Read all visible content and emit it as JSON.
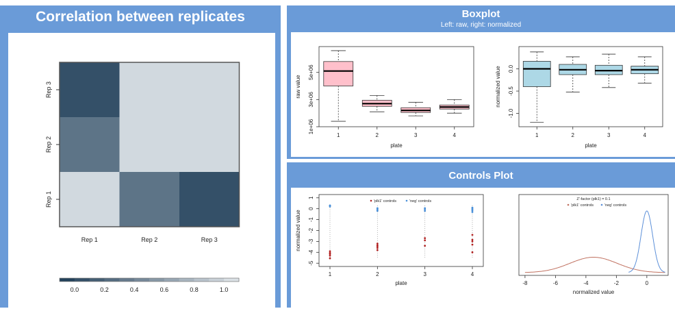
{
  "panels": {
    "correlation": {
      "title": "Correlation between replicates"
    },
    "boxplot": {
      "title": "Boxplot",
      "subtitle": "Left: raw, right: normalized"
    },
    "controls": {
      "title": "Controls Plot"
    }
  },
  "colors": {
    "panel_blue": "#6a9bd8",
    "box_pink": "#ffc0cb",
    "box_blue": "#add8e6",
    "plk1_red": "#b22222",
    "neg_blue": "#4a90d9",
    "density_red": "#c0705f",
    "density_blue": "#5b8fd8"
  },
  "chart_data": [
    {
      "type": "heatmap",
      "x_categories": [
        "Rep 1",
        "Rep 2",
        "Rep 3"
      ],
      "y_categories": [
        "Rep 1",
        "Rep 2",
        "Rep 3"
      ],
      "values": [
        [
          1.0,
          0.3,
          0.05
        ],
        [
          0.3,
          1.0,
          1.0
        ],
        [
          0.05,
          1.0,
          1.0
        ]
      ],
      "colorbar": {
        "ticks": [
          "0.0",
          "0.2",
          "0.4",
          "0.6",
          "0.8",
          "1.0"
        ],
        "range": [
          -0.1,
          1.1
        ]
      }
    },
    {
      "type": "boxplot",
      "xlabel": "plate",
      "ylabel": "raw value",
      "categories": [
        "1",
        "2",
        "3",
        "4"
      ],
      "ylim": [
        1000000,
        6900000
      ],
      "yticks": [
        {
          "value": 1000000,
          "label": "1e+06"
        },
        {
          "value": 3000000,
          "label": "3e+06"
        },
        {
          "value": 5000000,
          "label": "5e+06"
        }
      ],
      "boxes": [
        {
          "min": 1400000,
          "q1": 4000000,
          "median": 5100000,
          "q3": 5800000,
          "max": 6600000
        },
        {
          "min": 2100000,
          "q1": 2500000,
          "median": 2700000,
          "q3": 2950000,
          "max": 3300000
        },
        {
          "min": 1800000,
          "q1": 2050000,
          "median": 2200000,
          "q3": 2400000,
          "max": 2800000
        },
        {
          "min": 2000000,
          "q1": 2300000,
          "median": 2450000,
          "q3": 2600000,
          "max": 3000000
        }
      ]
    },
    {
      "type": "boxplot",
      "xlabel": "plate",
      "ylabel": "normalized value",
      "categories": [
        "1",
        "2",
        "3",
        "4"
      ],
      "ylim": [
        -1.3,
        0.5
      ],
      "yticks": [
        {
          "value": 0.0,
          "label": "0.0"
        },
        {
          "value": -0.5,
          "label": "-0.5"
        },
        {
          "value": -1.0,
          "label": "-1.0"
        }
      ],
      "boxes": [
        {
          "min": -1.2,
          "q1": -0.4,
          "median": 0.0,
          "q3": 0.17,
          "max": 0.38
        },
        {
          "min": -0.52,
          "q1": -0.13,
          "median": -0.02,
          "q3": 0.1,
          "max": 0.27
        },
        {
          "min": -0.42,
          "q1": -0.13,
          "median": -0.04,
          "q3": 0.08,
          "max": 0.33
        },
        {
          "min": -0.32,
          "q1": -0.11,
          "median": -0.02,
          "q3": 0.06,
          "max": 0.27
        }
      ]
    },
    {
      "type": "scatter",
      "xlabel": "plate",
      "ylabel": "normalized value",
      "x_ticks": [
        "1",
        "2",
        "3",
        "4"
      ],
      "ylim": [
        -5.3,
        1.3
      ],
      "yticks": [
        "1",
        "0",
        "-1",
        "-2",
        "-3",
        "-4",
        "-5"
      ],
      "legend": [
        "'plk1' controls",
        "'neg' controls"
      ],
      "series": [
        {
          "name": "'plk1' controls",
          "points": [
            [
              1,
              -3.9
            ],
            [
              1,
              -4.05
            ],
            [
              1,
              -4.15
            ],
            [
              1,
              -4.3
            ],
            [
              1,
              -4.55
            ],
            [
              2,
              -3.2
            ],
            [
              2,
              -3.35
            ],
            [
              2,
              -3.45
            ],
            [
              2,
              -3.6
            ],
            [
              2,
              -3.8
            ],
            [
              3,
              -2.7
            ],
            [
              3,
              -2.9
            ],
            [
              3,
              -3.4
            ],
            [
              4,
              -2.4
            ],
            [
              4,
              -2.85
            ],
            [
              4,
              -3.0
            ],
            [
              4,
              -3.3
            ],
            [
              4,
              -4.0
            ]
          ]
        },
        {
          "name": "'neg' controls",
          "points": [
            [
              1,
              0.2
            ],
            [
              1,
              0.28
            ],
            [
              1,
              0.3
            ],
            [
              2,
              -0.2
            ],
            [
              2,
              -0.1
            ],
            [
              2,
              0.0
            ],
            [
              2,
              0.05
            ],
            [
              3,
              -0.2
            ],
            [
              3,
              -0.05
            ],
            [
              3,
              0.05
            ],
            [
              4,
              -0.3
            ],
            [
              4,
              -0.15
            ],
            [
              4,
              -0.05
            ],
            [
              4,
              0.05
            ],
            [
              4,
              0.1
            ]
          ]
        }
      ]
    },
    {
      "type": "line",
      "title": "Z'-factor (plk1) = 0.1",
      "xlabel": "normalized value",
      "xlim": [
        -8.4,
        1.4
      ],
      "xticks": [
        "-8",
        "-6",
        "-4",
        "-2",
        "0"
      ],
      "legend": [
        "'plk1' controls",
        "'neg' controls"
      ],
      "series": [
        {
          "name": "'plk1' controls",
          "mean": -3.5,
          "sd": 1.55,
          "peak": 0.25
        },
        {
          "name": "'neg' controls",
          "mean": 0.0,
          "sd": 0.38,
          "peak": 1.0
        }
      ]
    }
  ]
}
